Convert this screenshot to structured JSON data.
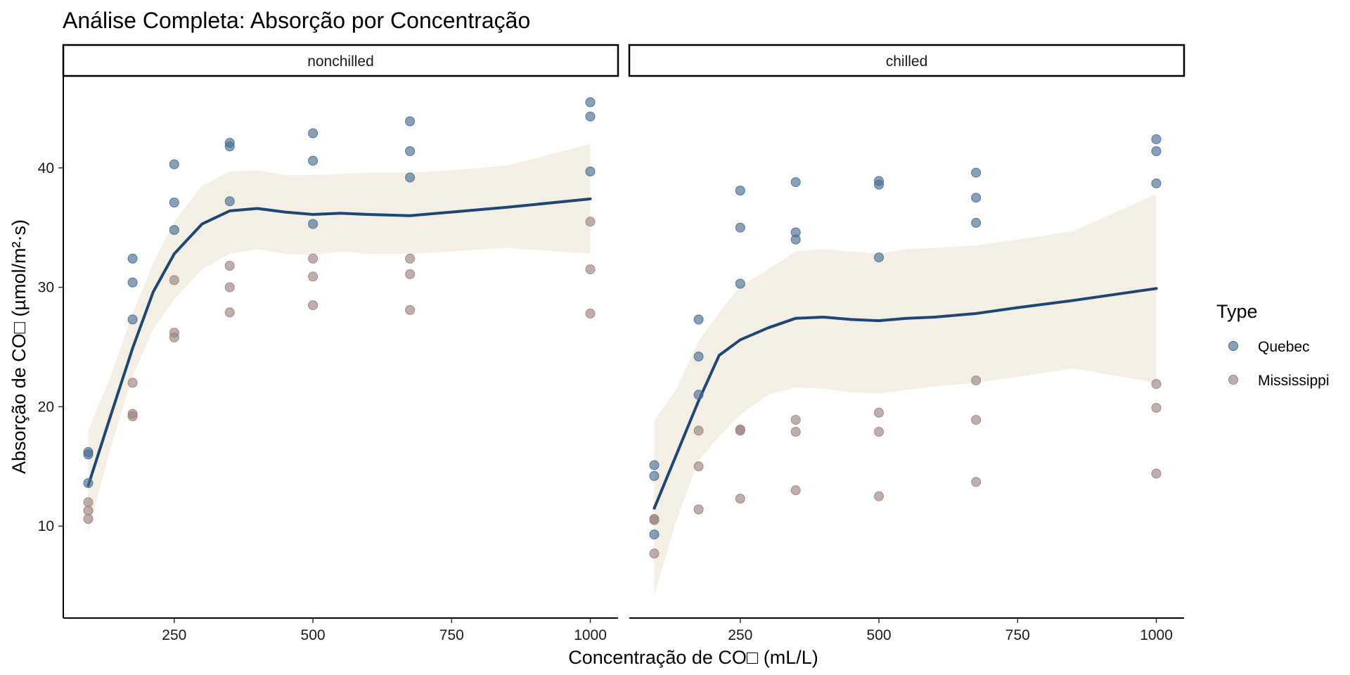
{
  "chart_data": {
    "type": "scatter",
    "title": "Análise Completa: Absorção por Concentração",
    "xlabel": "Concentração de CO□ (mL/L)",
    "ylabel": "Absorção de CO□ (µmol/m²·s)",
    "x_ticks": [
      250,
      500,
      750,
      1000
    ],
    "y_ticks": [
      10,
      20,
      30,
      40
    ],
    "xlim": [
      50,
      1050
    ],
    "ylim": [
      2.3,
      47.7
    ],
    "legend": {
      "title": "Type",
      "position": "right",
      "entries": [
        {
          "name": "Quebec",
          "color": "#4a6d94"
        },
        {
          "name": "Mississippi",
          "color": "#9c8380"
        }
      ]
    },
    "colors": {
      "smooth_line": "#1f4574",
      "ribbon": "#f4efe4"
    },
    "panels": [
      {
        "strip": "nonchilled",
        "series": [
          {
            "name": "Quebec",
            "points": [
              [
                95,
                16.0
              ],
              [
                95,
                13.6
              ],
              [
                95,
                16.2
              ],
              [
                175,
                30.4
              ],
              [
                175,
                27.3
              ],
              [
                175,
                32.4
              ],
              [
                250,
                34.8
              ],
              [
                250,
                37.1
              ],
              [
                250,
                40.3
              ],
              [
                350,
                37.2
              ],
              [
                350,
                41.8
              ],
              [
                350,
                42.1
              ],
              [
                500,
                35.3
              ],
              [
                500,
                40.6
              ],
              [
                500,
                42.9
              ],
              [
                675,
                39.2
              ],
              [
                675,
                41.4
              ],
              [
                675,
                43.9
              ],
              [
                1000,
                39.7
              ],
              [
                1000,
                44.3
              ],
              [
                1000,
                45.5
              ]
            ]
          },
          {
            "name": "Mississippi",
            "points": [
              [
                95,
                10.6
              ],
              [
                95,
                12.0
              ],
              [
                95,
                11.3
              ],
              [
                175,
                19.2
              ],
              [
                175,
                22.0
              ],
              [
                175,
                19.4
              ],
              [
                250,
                26.2
              ],
              [
                250,
                30.6
              ],
              [
                250,
                25.8
              ],
              [
                350,
                30.0
              ],
              [
                350,
                31.8
              ],
              [
                350,
                27.9
              ],
              [
                500,
                30.9
              ],
              [
                500,
                32.4
              ],
              [
                500,
                28.5
              ],
              [
                675,
                32.4
              ],
              [
                675,
                31.1
              ],
              [
                675,
                28.1
              ],
              [
                1000,
                35.5
              ],
              [
                1000,
                31.5
              ],
              [
                1000,
                27.8
              ]
            ]
          }
        ],
        "smooth": {
          "x": [
            95,
            135,
            175,
            212,
            250,
            300,
            350,
            400,
            450,
            500,
            550,
            600,
            675,
            750,
            850,
            1000
          ],
          "y": [
            13.4,
            19.2,
            24.9,
            29.6,
            32.8,
            35.3,
            36.4,
            36.6,
            36.3,
            36.1,
            36.2,
            36.1,
            36.0,
            36.3,
            36.7,
            37.4
          ],
          "lower": [
            9.5,
            16.5,
            22.5,
            26.5,
            29.0,
            31.5,
            32.8,
            33.2,
            32.8,
            32.7,
            33.0,
            32.8,
            32.8,
            33.0,
            33.3,
            32.8
          ],
          "upper": [
            18.0,
            22.5,
            27.8,
            32.0,
            35.5,
            38.5,
            39.7,
            39.8,
            39.4,
            39.4,
            39.5,
            39.6,
            39.6,
            39.8,
            40.2,
            42.0
          ]
        }
      },
      {
        "strip": "chilled",
        "series": [
          {
            "name": "Quebec",
            "points": [
              [
                95,
                15.1
              ],
              [
                95,
                14.2
              ],
              [
                95,
                9.3
              ],
              [
                175,
                24.2
              ],
              [
                175,
                27.3
              ],
              [
                175,
                21.0
              ],
              [
                250,
                30.3
              ],
              [
                250,
                35.0
              ],
              [
                250,
                38.1
              ],
              [
                350,
                34.6
              ],
              [
                350,
                38.8
              ],
              [
                350,
                34.0
              ],
              [
                500,
                38.6
              ],
              [
                500,
                38.9
              ],
              [
                500,
                32.5
              ],
              [
                675,
                37.5
              ],
              [
                675,
                39.6
              ],
              [
                675,
                35.4
              ],
              [
                1000,
                41.4
              ],
              [
                1000,
                42.4
              ],
              [
                1000,
                38.7
              ]
            ]
          },
          {
            "name": "Mississippi",
            "points": [
              [
                95,
                10.5
              ],
              [
                95,
                10.6
              ],
              [
                95,
                7.7
              ],
              [
                175,
                15.0
              ],
              [
                175,
                18.0
              ],
              [
                175,
                11.4
              ],
              [
                250,
                18.0
              ],
              [
                250,
                18.1
              ],
              [
                250,
                12.3
              ],
              [
                350,
                17.9
              ],
              [
                350,
                18.9
              ],
              [
                350,
                13.0
              ],
              [
                500,
                17.9
              ],
              [
                500,
                19.5
              ],
              [
                500,
                12.5
              ],
              [
                675,
                18.9
              ],
              [
                675,
                22.2
              ],
              [
                675,
                13.7
              ],
              [
                1000,
                21.9
              ],
              [
                1000,
                19.9
              ],
              [
                1000,
                14.4
              ]
            ]
          }
        ],
        "smooth": {
          "x": [
            95,
            135,
            175,
            212,
            250,
            300,
            350,
            400,
            450,
            500,
            550,
            600,
            675,
            750,
            850,
            1000
          ],
          "y": [
            11.5,
            16.0,
            20.5,
            24.3,
            25.6,
            26.6,
            27.4,
            27.5,
            27.3,
            27.2,
            27.4,
            27.5,
            27.8,
            28.3,
            28.9,
            29.9
          ],
          "lower": [
            4.2,
            10.5,
            15.5,
            17.5,
            19.3,
            21.0,
            21.6,
            21.5,
            21.2,
            21.1,
            21.4,
            21.7,
            22.0,
            22.5,
            23.2,
            22.0
          ],
          "upper": [
            18.8,
            21.5,
            25.5,
            27.9,
            30.1,
            31.5,
            33.0,
            33.2,
            33.0,
            32.8,
            33.2,
            33.3,
            33.5,
            34.0,
            34.7,
            37.8
          ]
        }
      }
    ]
  }
}
